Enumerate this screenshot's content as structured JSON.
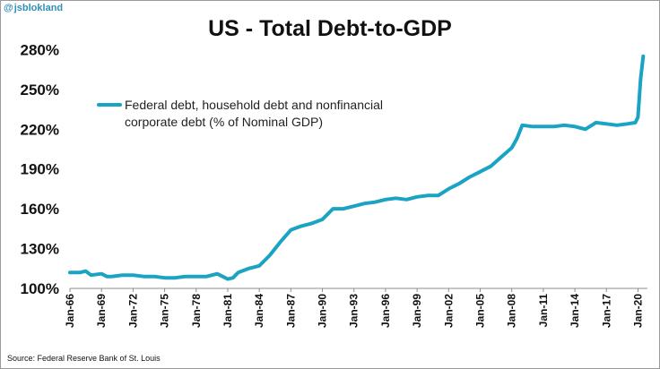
{
  "watermark": {
    "handle": "jsblokland",
    "icon": "at-icon"
  },
  "footer": {
    "source": "Source: Federal Reserve Bank of St. Louis"
  },
  "chart_data": {
    "type": "line",
    "title": "US - Total Debt-to-GDP",
    "xlabel": "",
    "ylabel": "",
    "ylim": [
      100,
      285
    ],
    "yticks": [
      "100%",
      "130%",
      "160%",
      "190%",
      "220%",
      "250%",
      "280%"
    ],
    "xticks": [
      "Jan-66",
      "Jan-69",
      "Jan-72",
      "Jan-75",
      "Jan-78",
      "Jan-81",
      "Jan-84",
      "Jan-87",
      "Jan-90",
      "Jan-93",
      "Jan-96",
      "Jan-99",
      "Jan-02",
      "Jan-05",
      "Jan-08",
      "Jan-11",
      "Jan-14",
      "Jan-17",
      "Jan-20"
    ],
    "xlim": [
      1966,
      2020.9
    ],
    "grid": "none",
    "legend_position": "top-left",
    "series": [
      {
        "name": "Federal debt, household debt and nonfinancial corporate debt (% of Nominal GDP)",
        "color": "#1aa3c2",
        "x": [
          1966,
          1967,
          1967.5,
          1968,
          1969,
          1969.5,
          1970,
          1971,
          1972,
          1973,
          1974,
          1975,
          1976,
          1977,
          1978,
          1979,
          1980,
          1981,
          1981.5,
          1982,
          1983,
          1984,
          1985,
          1986,
          1987,
          1988,
          1989,
          1990,
          1991,
          1992,
          1993,
          1994,
          1995,
          1996,
          1997,
          1998,
          1999,
          2000,
          2001,
          2002,
          2003,
          2004,
          2005,
          2006,
          2007,
          2008,
          2008.5,
          2009,
          2010,
          2011,
          2012,
          2013,
          2014,
          2015,
          2016,
          2017,
          2018,
          2019,
          2019.75,
          2020,
          2020.25,
          2020.5
        ],
        "y": [
          112,
          112,
          113,
          110,
          111,
          109,
          109,
          110,
          110,
          109,
          109,
          108,
          108,
          109,
          109,
          109,
          111,
          107,
          108,
          112,
          115,
          117,
          125,
          135,
          144,
          147,
          149,
          152,
          160,
          160,
          162,
          164,
          165,
          167,
          168,
          167,
          169,
          170,
          170,
          175,
          179,
          184,
          188,
          192,
          199,
          206,
          213,
          223,
          222,
          222,
          222,
          223,
          222,
          220,
          225,
          224,
          223,
          224,
          225,
          229,
          258,
          275
        ]
      }
    ]
  }
}
